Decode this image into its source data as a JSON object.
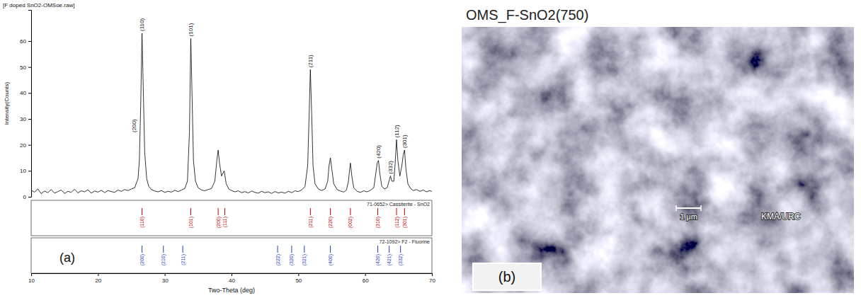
{
  "chart_data": {
    "type": "line",
    "title": "[F doped SnO2-OMSoe.raw]",
    "x_label": "Two-Theta (deg)",
    "y_label": "Intensity(Counts)",
    "color": "#000000",
    "xlim": [
      10,
      70
    ],
    "xticks": [
      10,
      20,
      30,
      40,
      50,
      60,
      70
    ],
    "ylim": [
      0,
      72
    ],
    "yticks": [
      0,
      10,
      20,
      30,
      40,
      50,
      60
    ],
    "x": [
      10,
      10.5,
      11,
      11.5,
      12,
      12.5,
      13,
      13.5,
      14,
      14.5,
      15,
      15.5,
      16,
      16.5,
      17,
      17.5,
      18,
      18.5,
      19,
      19.5,
      20,
      20.5,
      21,
      21.5,
      22,
      22.5,
      23,
      23.5,
      24,
      24.5,
      25,
      25.5,
      26.0,
      26.2,
      26.4,
      26.6,
      26.8,
      27.0,
      27.3,
      27.6,
      28.0,
      28.5,
      29.0,
      29.5,
      30.0,
      30.5,
      31.0,
      31.5,
      32.0,
      32.5,
      33.0,
      33.4,
      33.7,
      33.9,
      34.1,
      34.3,
      34.6,
      35.0,
      35.5,
      36.0,
      36.5,
      37.0,
      37.5,
      37.8,
      38.0,
      38.2,
      38.5,
      38.9,
      39.2,
      39.6,
      40.0,
      40.5,
      41.0,
      41.5,
      42.0,
      42.5,
      43.0,
      43.5,
      44.0,
      44.5,
      45.0,
      45.5,
      46.0,
      46.5,
      47.0,
      47.5,
      48.0,
      48.5,
      49.0,
      49.5,
      50.0,
      50.5,
      51.0,
      51.4,
      51.6,
      51.8,
      52.0,
      52.2,
      52.5,
      53.0,
      53.5,
      54.0,
      54.4,
      54.6,
      54.8,
      55.0,
      55.3,
      55.8,
      56.3,
      56.8,
      57.2,
      57.5,
      57.7,
      57.8,
      58.0,
      58.3,
      58.8,
      59.3,
      59.8,
      60.3,
      60.8,
      61.3,
      61.6,
      61.8,
      62.0,
      62.2,
      62.5,
      62.9,
      63.3,
      63.8,
      64.0,
      64.3,
      64.5,
      64.7,
      64.9,
      65.2,
      65.5,
      65.7,
      65.9,
      66.1,
      66.4,
      66.8,
      67.2,
      67.7,
      68.2,
      68.7,
      69.2,
      69.7,
      70.0
    ],
    "values": [
      2.5,
      1.8,
      3.0,
      1.2,
      2.2,
      1.6,
      2.8,
      1.4,
      2.0,
      2.6,
      1.3,
      2.1,
      1.7,
      2.9,
      1.5,
      2.3,
      1.9,
      2.7,
      1.4,
      2.2,
      1.8,
      2.5,
      1.6,
      2.4,
      2.0,
      1.7,
      2.6,
      2.1,
      2.8,
      2.4,
      3.0,
      3.5,
      7,
      14,
      35,
      63,
      40,
      17,
      7,
      4,
      2.8,
      2.2,
      1.9,
      2.4,
      1.7,
      2.1,
      1.8,
      2.5,
      2.0,
      2.6,
      3.2,
      6,
      25,
      61,
      38,
      14,
      6,
      3.5,
      2.6,
      2.3,
      2.8,
      3.2,
      6,
      14,
      18,
      13,
      8,
      10,
      5,
      3,
      2.4,
      1.9,
      2.3,
      1.6,
      2.0,
      1.5,
      2.2,
      1.7,
      1.4,
      2.1,
      1.6,
      1.9,
      1.3,
      2.0,
      1.5,
      1.8,
      1.4,
      2.1,
      1.6,
      2.3,
      2.0,
      2.6,
      4,
      12,
      30,
      49,
      32,
      12,
      5,
      3,
      2.4,
      3.0,
      6,
      12,
      15,
      11,
      5,
      2.8,
      2.2,
      1.8,
      2.6,
      6,
      11,
      13,
      8,
      3.5,
      2.1,
      1.7,
      2.3,
      1.9,
      2.5,
      3.5,
      9,
      13,
      14,
      9,
      4,
      3,
      3.5,
      8,
      6,
      6,
      13,
      22,
      14,
      8,
      12,
      16,
      18,
      11,
      5,
      3.2,
      2.4,
      2.8,
      2.1,
      2.6,
      1.9,
      2.4,
      2.0
    ],
    "annotations": [
      {
        "text": "(110)",
        "x": 26.6,
        "y": 63
      },
      {
        "text": "(200)",
        "x": 25.4,
        "y": 24
      },
      {
        "text": "(101)",
        "x": 33.9,
        "y": 61
      },
      {
        "text": "(211)",
        "x": 51.8,
        "y": 49
      },
      {
        "text": "(420)",
        "x": 62.0,
        "y": 14
      },
      {
        "text": "(332)",
        "x": 63.8,
        "y": 8
      },
      {
        "text": "(112)",
        "x": 64.7,
        "y": 22
      },
      {
        "text": "(301)",
        "x": 65.9,
        "y": 18
      }
    ],
    "references": [
      {
        "name": "71-0652> Cassiterite - SnO2",
        "color": "#c00000",
        "x": [
          26.6,
          33.9,
          38.0,
          39.0,
          51.8,
          54.8,
          57.8,
          61.9,
          64.7,
          65.9
        ],
        "labels": [
          "(110)",
          "(101)",
          "(200)",
          "(111)",
          "(211)",
          "(220)",
          "(002)",
          "(310)",
          "(112)",
          "(301)"
        ]
      },
      {
        "name": "72-1092> F2 - Fluorine",
        "color": "#1f3fbf",
        "x": [
          26.6,
          29.8,
          32.7,
          46.9,
          49.0,
          50.9,
          54.8,
          61.9,
          63.6,
          65.3
        ],
        "labels": [
          "(200)",
          "(210)",
          "(211)",
          "(222)",
          "(320)",
          "(321)",
          "(400)",
          "(420)",
          "(421)",
          "(332)"
        ]
      }
    ],
    "panel_label": "(a)"
  },
  "micrograph": {
    "title": "OMS_F-SnO2(750)",
    "scale_bar": "1 μm",
    "credit": "KMA/URC",
    "panel_label": "(b)"
  }
}
